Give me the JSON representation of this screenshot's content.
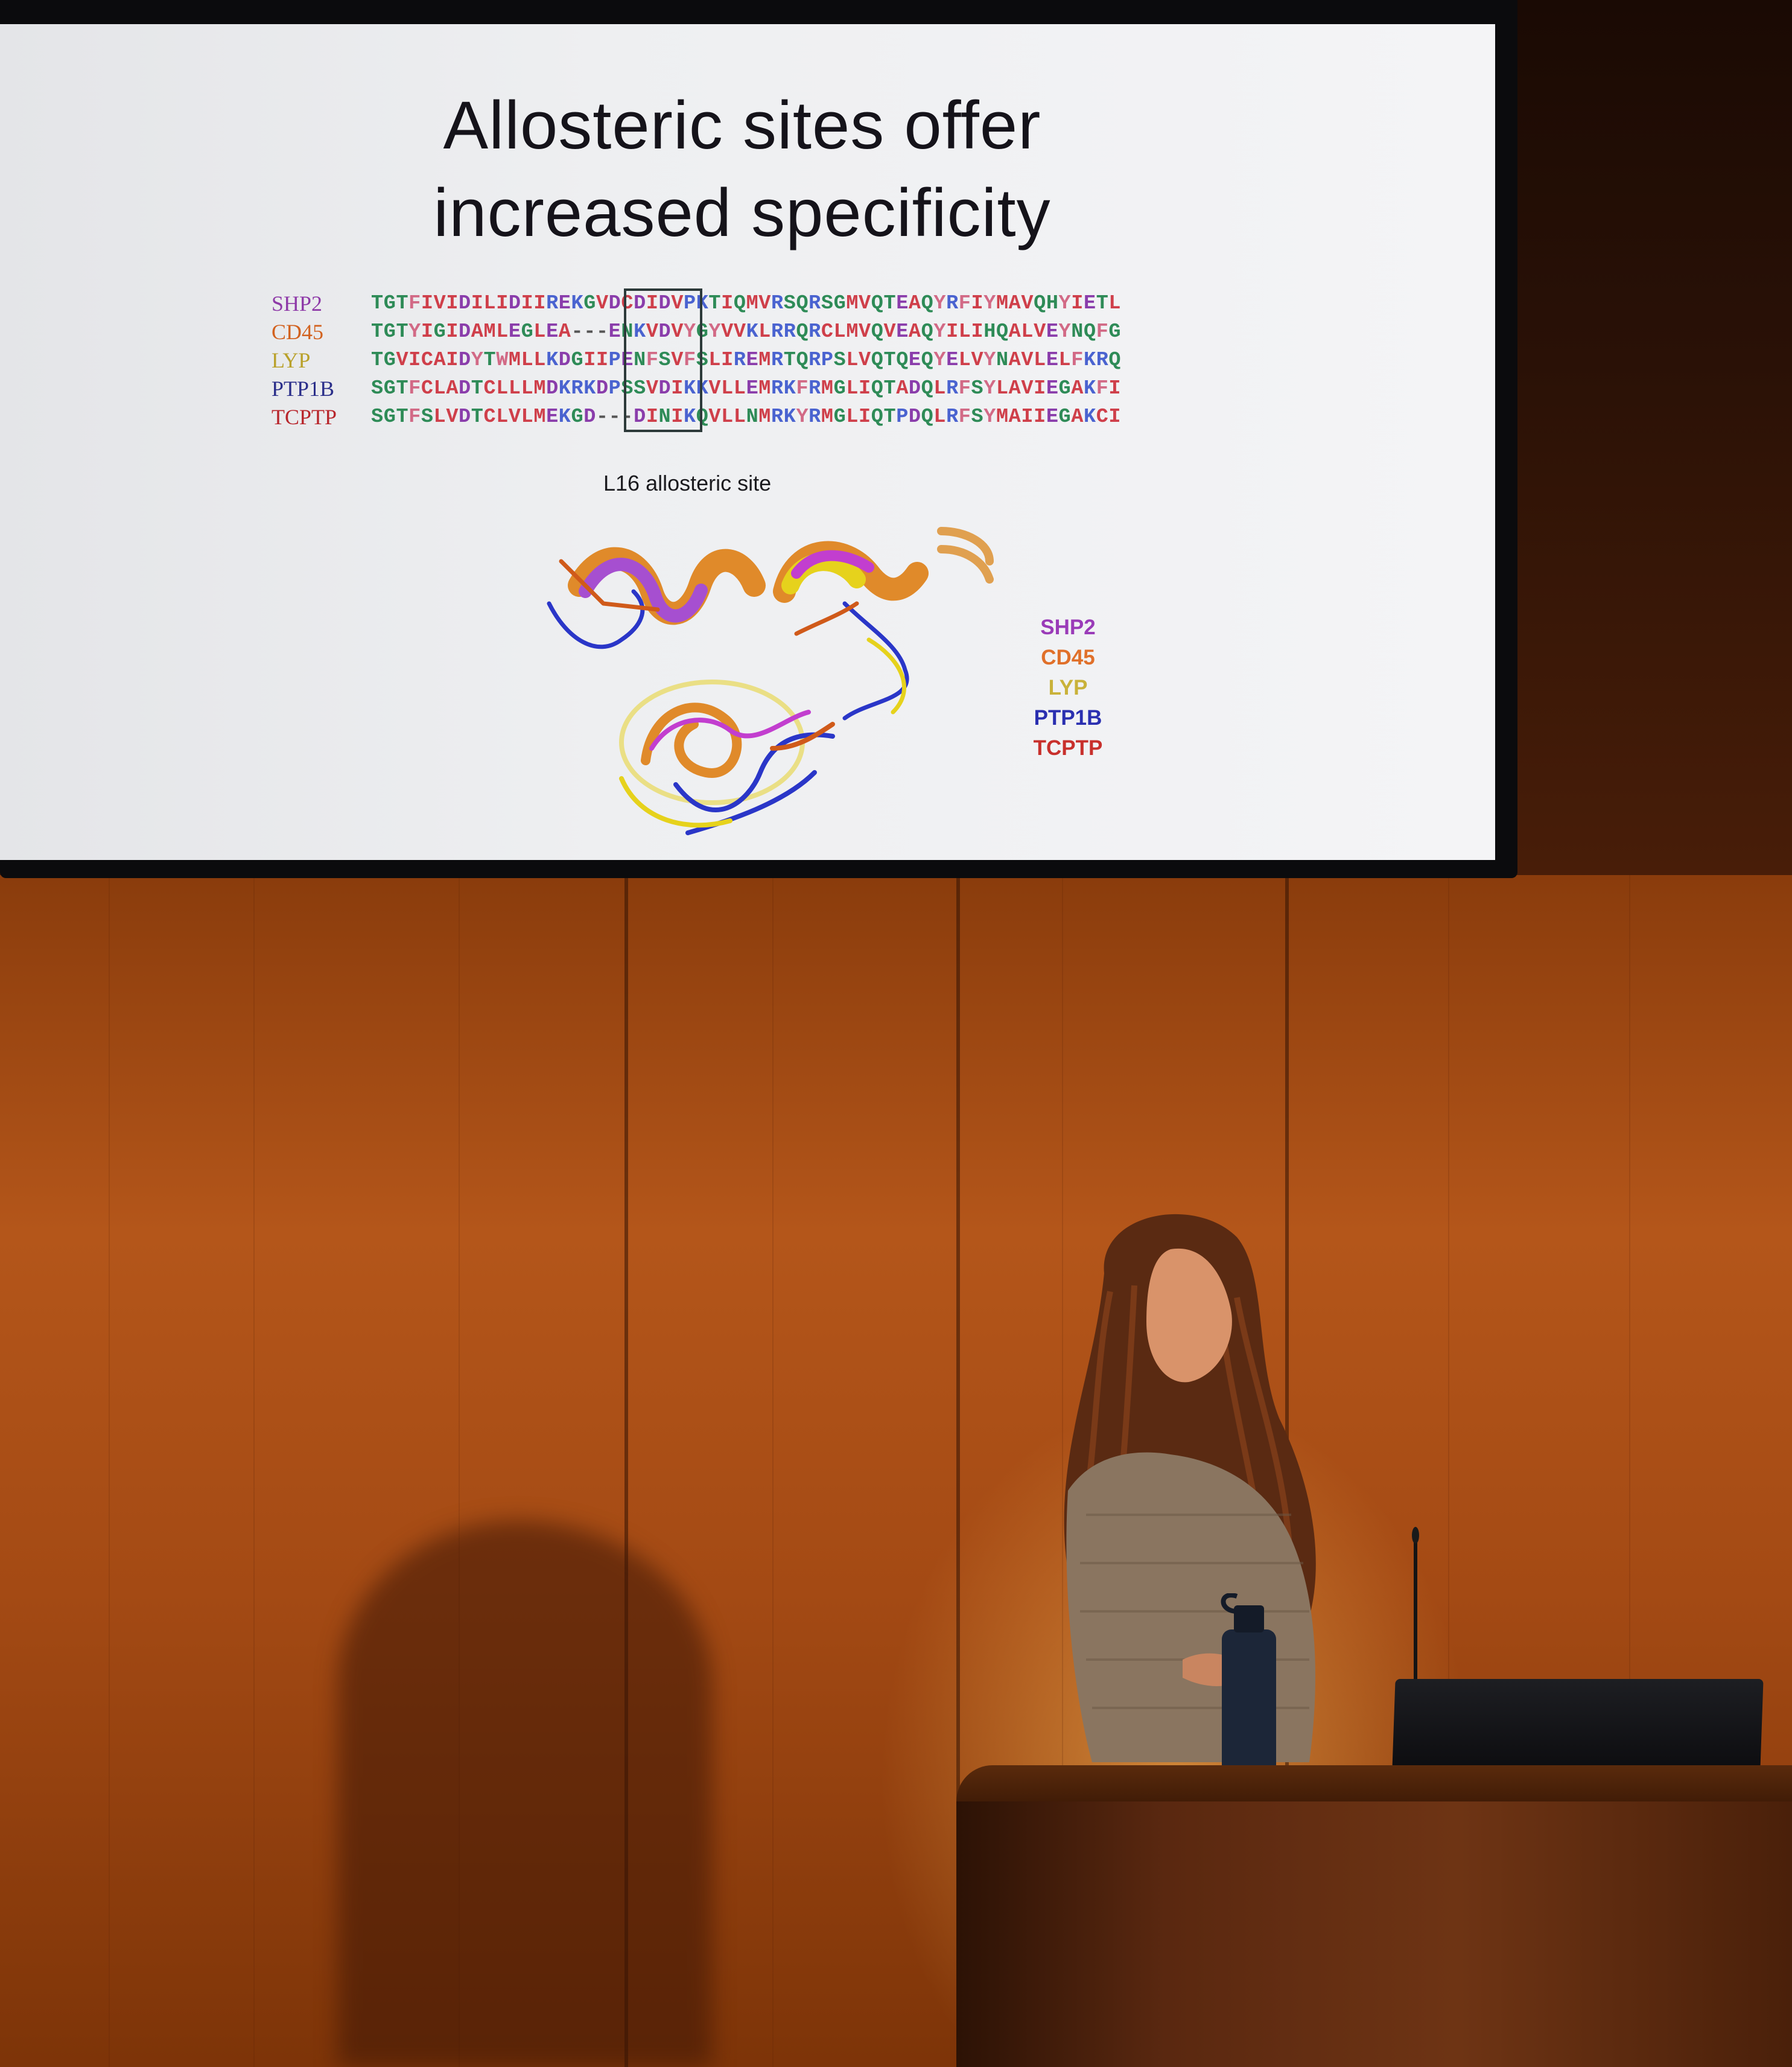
{
  "slide": {
    "title_line1": "Allosteric sites offer",
    "title_line2": "increased specificity",
    "site_label": "L16 allosteric site"
  },
  "alignment": [
    {
      "name": "SHP2",
      "name_color": "#8e3aa8",
      "seq": "TGTFIVIDILIDIIREKGVDCDIDVPKTIQMVRSQRSGMVQTEAQYRFIYMAVQHYIETL"
    },
    {
      "name": "CD45",
      "name_color": "#d2621f",
      "seq": "TGTYIGIDAMLEGLEA---ENKVDVYGYVVKLRRQRCLMVQVEAQYILIHQALVEYNQFG"
    },
    {
      "name": "LYP",
      "name_color": "#b9a12a",
      "seq": "TGVICAIDYTWMLLKDGIIPENFSVFSLIREMRTQRPSLVQTQEQYELVYNAVLELFKRQ"
    },
    {
      "name": "PTP1B",
      "name_color": "#2b2f8a",
      "seq": "SGTFCLADTCLLLMDKRKDPSSVDIKKVLLEMRKFRMGLIQTADQLRFSYLAVIEGAKFI"
    },
    {
      "name": "TCPTP",
      "name_color": "#b8262c",
      "seq": "SGTFSLVDTCLVLMEKGD---DINIKQVLLNMRKYRMGLIQTPDQLRFSYMAIIEGAKCI"
    }
  ],
  "legend": [
    {
      "label": "SHP2",
      "color": "#9a3bb8"
    },
    {
      "label": "CD45",
      "color": "#e0702a"
    },
    {
      "label": "LYP",
      "color": "#c9b23a"
    },
    {
      "label": "PTP1B",
      "color": "#2a2fb0"
    },
    {
      "label": "TCPTP",
      "color": "#c8302c"
    }
  ],
  "residue_colors": {
    "hydrophobic": "#cf3f4a",
    "aromatic": "#d26a86",
    "polar": "#2e8b57",
    "acidic": "#8a3dab",
    "basic": "#4a63d0",
    "other": "#555555"
  }
}
